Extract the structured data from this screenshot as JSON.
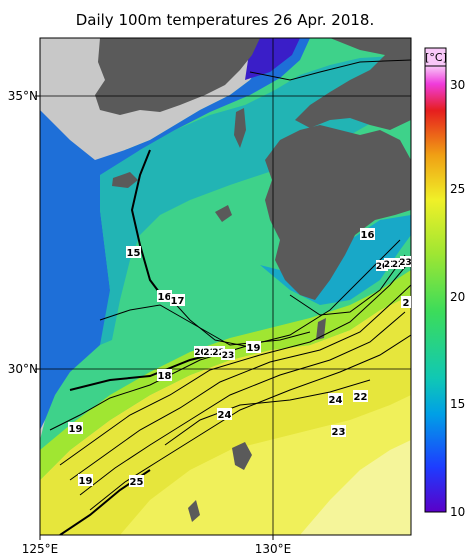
{
  "title": "Daily 100m temperatures 26 Apr. 2018.",
  "lat_labels": [
    "35°N",
    "30°N"
  ],
  "lon_labels": [
    "125°E",
    "130°E"
  ],
  "colorbar": {
    "unit": "[°C]",
    "ticks": [
      "30",
      "25",
      "20",
      "15",
      "10"
    ],
    "range": [
      10,
      31
    ],
    "colors": [
      "#5a00c8",
      "#1e3cff",
      "#00a0e6",
      "#10c8b4",
      "#3cdc5a",
      "#a0e632",
      "#f0f028",
      "#f0a014",
      "#e61e1e",
      "#f03cdc",
      "#f8c8f8"
    ]
  },
  "contour_labels": [
    "15",
    "16",
    "17",
    "16",
    "20",
    "21",
    "22",
    "23",
    "19",
    "20",
    "21",
    "22",
    "23",
    "18",
    "19",
    "19",
    "25",
    "24",
    "24",
    "22",
    "23",
    "2"
  ],
  "colors": {
    "land": "#5a5a5a",
    "no_data": "#c8c8c8",
    "grid": "#000000"
  }
}
